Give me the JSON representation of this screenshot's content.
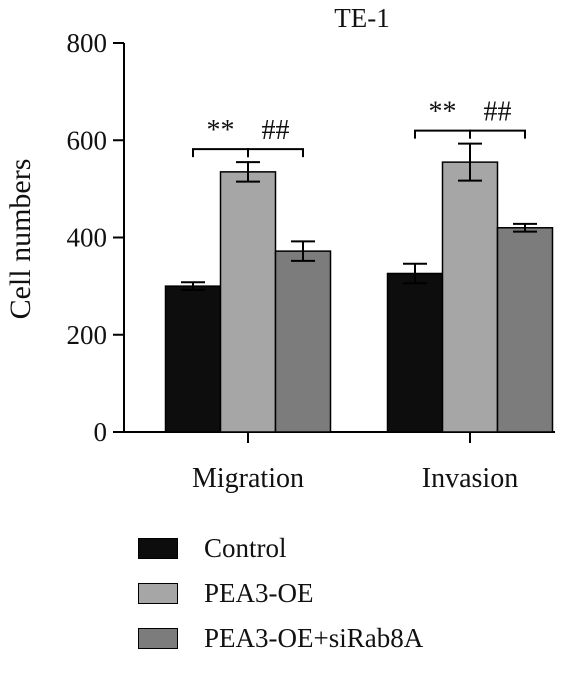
{
  "chart_data": {
    "type": "bar",
    "title": "TE-1",
    "xlabel": "",
    "ylabel": "Cell numbers",
    "ylim": [
      0,
      800
    ],
    "yticks": [
      "0",
      "200",
      "400",
      "600",
      "800"
    ],
    "categories": [
      "Migration",
      "Invasion"
    ],
    "series": [
      {
        "name": "Control",
        "values": [
          300,
          326
        ],
        "errors": [
          8,
          20
        ],
        "color": "#0d0d0d"
      },
      {
        "name": "PEA3-OE",
        "values": [
          535,
          555
        ],
        "errors": [
          20,
          38
        ],
        "color": "#a6a6a6"
      },
      {
        "name": "PEA3-OE+siRab8A",
        "values": [
          372,
          420
        ],
        "errors": [
          20,
          8
        ],
        "color": "#7c7c7c"
      }
    ],
    "annotations": [
      {
        "text": "**",
        "category": "Migration",
        "from_series": 0,
        "to_series": 1
      },
      {
        "text": "##",
        "category": "Migration",
        "from_series": 1,
        "to_series": 2
      },
      {
        "text": "**",
        "category": "Invasion",
        "from_series": 0,
        "to_series": 1
      },
      {
        "text": "##",
        "category": "Invasion",
        "from_series": 1,
        "to_series": 2
      }
    ],
    "grid": false,
    "legend_position": "bottom"
  }
}
